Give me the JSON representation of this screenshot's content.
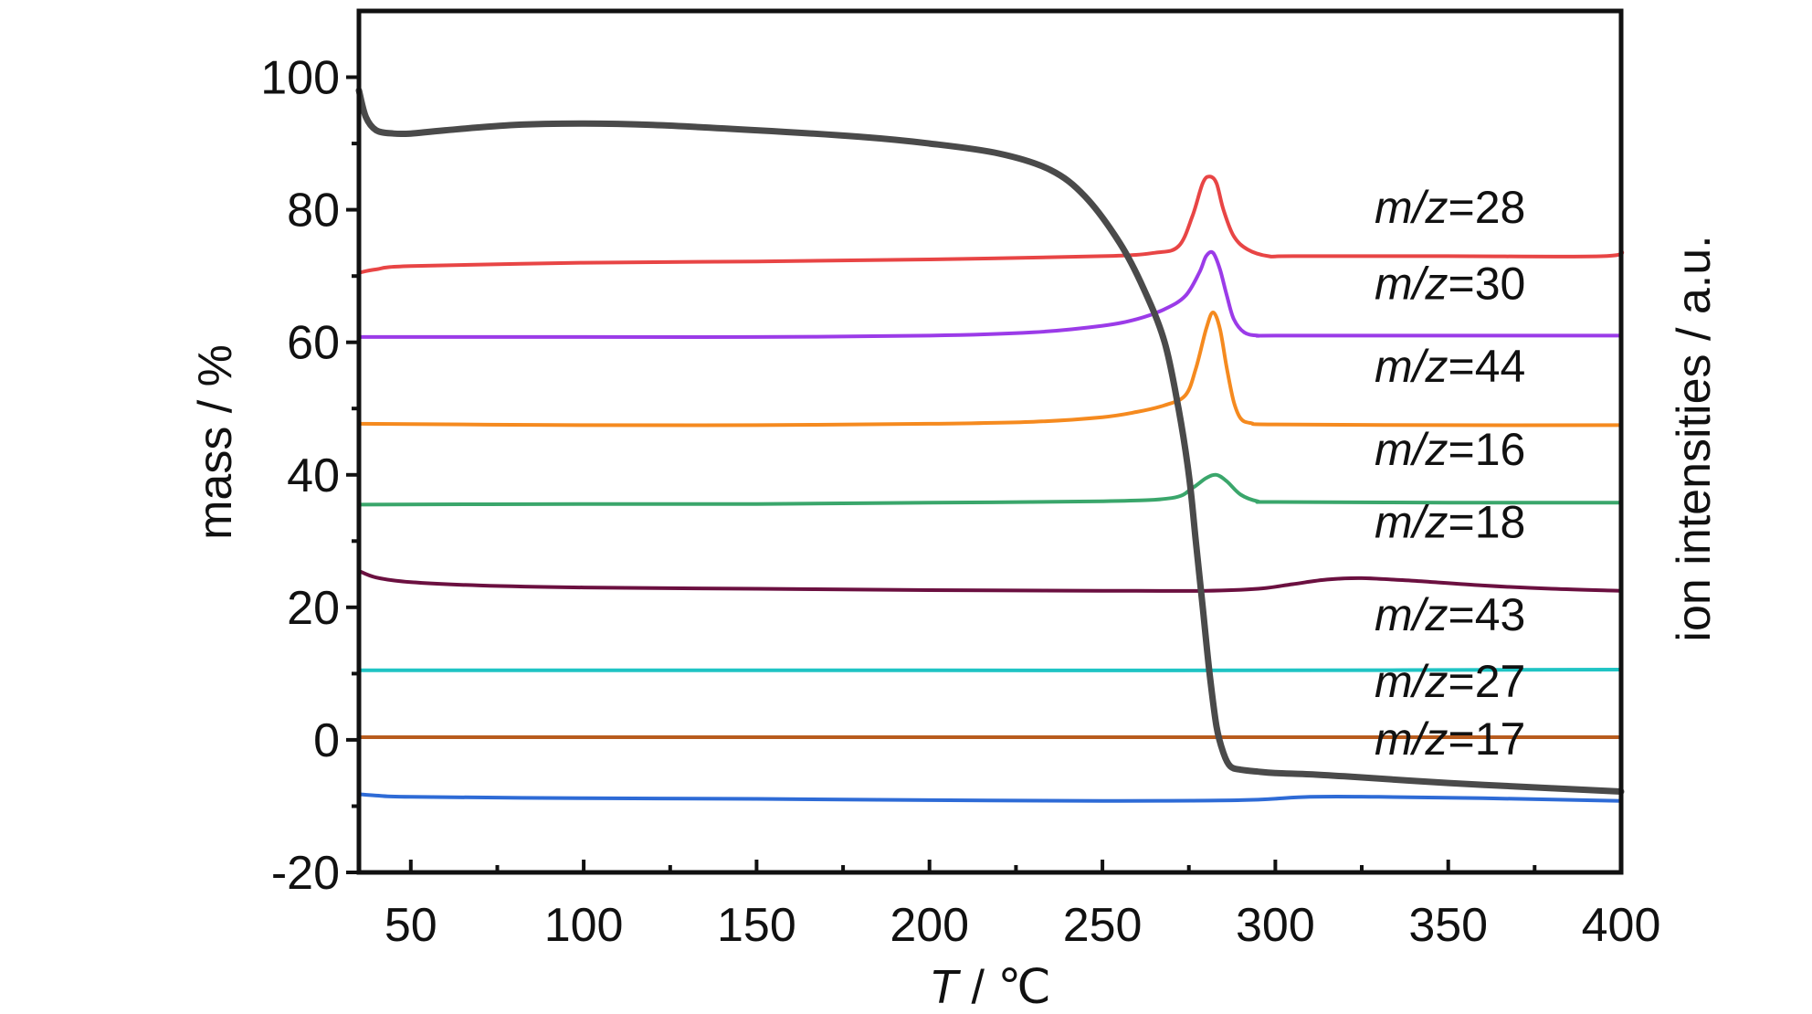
{
  "chart_data": {
    "type": "line",
    "xlabel_italic": "T",
    "xlabel_rest": " / ℃",
    "ylabel": "mass / %",
    "y2label": "ion intensities / a.u.",
    "xlim": [
      35,
      400
    ],
    "ylim": [
      -20,
      110
    ],
    "x_ticks": [
      50,
      100,
      150,
      200,
      250,
      300,
      350,
      400
    ],
    "y_ticks": [
      -20,
      0,
      20,
      40,
      60,
      80,
      100
    ],
    "mass_curve": {
      "color": "#4a4a4a",
      "x": [
        35,
        37,
        40,
        45,
        50,
        60,
        80,
        100,
        120,
        150,
        180,
        200,
        220,
        235,
        245,
        255,
        262,
        268,
        272,
        275,
        277,
        279,
        281,
        283,
        285,
        287,
        290,
        295,
        300,
        310,
        320,
        350,
        380,
        400
      ],
      "y": [
        98,
        94,
        92,
        91.5,
        91.5,
        92,
        92.8,
        93,
        92.8,
        92,
        91,
        90,
        88.5,
        86,
        82,
        75,
        68,
        60,
        50,
        40,
        30,
        20,
        10,
        2,
        -2,
        -4,
        -4.5,
        -4.8,
        -5,
        -5.2,
        -5.5,
        -6.5,
        -7.3,
        -7.8
      ]
    },
    "ion_series": [
      {
        "label_italic": "m/z",
        "label_rest": "=28",
        "color": "#e84545",
        "label_y": 78,
        "x": [
          35,
          40,
          50,
          100,
          150,
          200,
          250,
          265,
          272,
          276,
          279,
          281,
          283,
          285,
          288,
          292,
          298,
          305,
          350,
          395,
          400
        ],
        "y": [
          70.5,
          71,
          71.5,
          72,
          72.2,
          72.5,
          73,
          73.5,
          74.5,
          79,
          84,
          85,
          84,
          80,
          76,
          74,
          73,
          73,
          73,
          73,
          74
        ]
      },
      {
        "label_italic": "m/z",
        "label_rest": "=30",
        "color": "#9b3be8",
        "label_y": 66.5,
        "x": [
          35,
          100,
          150,
          200,
          230,
          250,
          260,
          268,
          274,
          278,
          280,
          282,
          284,
          286,
          288,
          291,
          295,
          300,
          350,
          400
        ],
        "y": [
          60.8,
          60.8,
          60.8,
          61,
          61.5,
          62.5,
          63.5,
          65,
          67,
          70.5,
          73,
          73.5,
          71,
          67,
          63.5,
          61.5,
          61,
          61,
          61,
          61
        ]
      },
      {
        "label_italic": "m/z",
        "label_rest": "=44",
        "color": "#f58a1f",
        "label_y": 54,
        "x": [
          35,
          100,
          150,
          200,
          230,
          250,
          260,
          268,
          274,
          277,
          280,
          282,
          284,
          286,
          288,
          290,
          293,
          300,
          350,
          400
        ],
        "y": [
          47.7,
          47.5,
          47.5,
          47.7,
          48,
          48.7,
          49.5,
          50.5,
          52,
          56,
          62,
          64.5,
          62,
          56,
          51,
          48.5,
          47.8,
          47.6,
          47.5,
          47.5
        ]
      },
      {
        "label_italic": "m/z",
        "label_rest": "=16",
        "color": "#3aa66b",
        "label_y": 41.5,
        "x": [
          35,
          100,
          150,
          200,
          250,
          270,
          276,
          280,
          283,
          286,
          290,
          295,
          300,
          350,
          400
        ],
        "y": [
          35.5,
          35.6,
          35.6,
          35.8,
          36,
          36.5,
          38,
          39.5,
          40,
          39,
          37,
          36,
          35.9,
          35.8,
          35.8
        ]
      },
      {
        "label_italic": "m/z",
        "label_rest": "=18",
        "color": "#6b1040",
        "label_y": 30.5,
        "x": [
          35,
          40,
          50,
          70,
          100,
          150,
          200,
          250,
          280,
          295,
          305,
          315,
          325,
          340,
          360,
          380,
          400
        ],
        "y": [
          25.5,
          24.5,
          23.8,
          23.3,
          23,
          22.8,
          22.6,
          22.5,
          22.5,
          22.8,
          23.5,
          24.2,
          24.4,
          24,
          23.3,
          22.8,
          22.5
        ]
      },
      {
        "label_italic": "m/z",
        "label_rest": "=43",
        "color": "#1fc4c4",
        "label_y": 16.5,
        "x": [
          35,
          100,
          200,
          300,
          400
        ],
        "y": [
          10.5,
          10.5,
          10.5,
          10.5,
          10.6
        ]
      },
      {
        "label_italic": "m/z",
        "label_rest": "=27",
        "color": "#b85c1e",
        "label_y": 6.5,
        "x": [
          35,
          100,
          200,
          300,
          400
        ],
        "y": [
          0.4,
          0.4,
          0.4,
          0.4,
          0.4
        ]
      },
      {
        "label_italic": "m/z",
        "label_rest": "=17",
        "color": "#2e6bd6",
        "label_y": -2.2,
        "x": [
          35,
          40,
          50,
          100,
          150,
          200,
          250,
          290,
          310,
          330,
          360,
          400
        ],
        "y": [
          -8.2,
          -8.4,
          -8.6,
          -8.8,
          -8.9,
          -9.1,
          -9.2,
          -9.1,
          -8.6,
          -8.6,
          -8.8,
          -9.2
        ]
      }
    ]
  }
}
